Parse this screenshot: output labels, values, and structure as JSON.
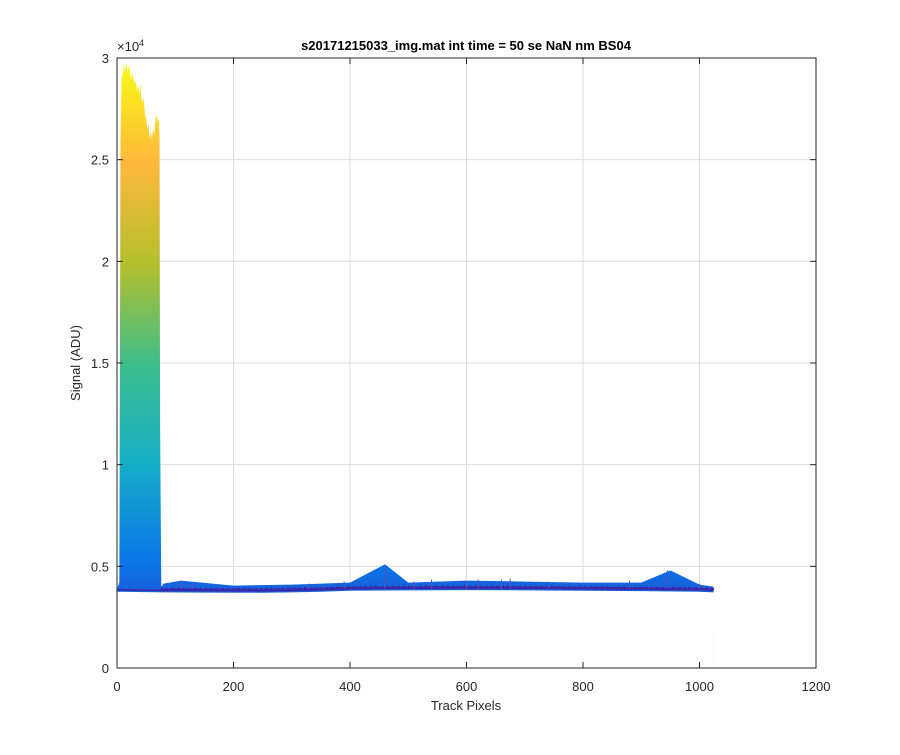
{
  "chart_data": {
    "type": "area",
    "title": "s20171215033_img.mat int time = 50 se  NaN nm BS04",
    "xlabel": "Track Pixels",
    "ylabel": "Signal (ADU)",
    "y_exponent_label": "×10",
    "y_exponent_power": "4",
    "xlim": [
      0,
      1200
    ],
    "ylim": [
      0,
      30000
    ],
    "x_ticks": [
      0,
      200,
      400,
      600,
      800,
      1000,
      1200
    ],
    "x_tick_labels": [
      "0",
      "200",
      "400",
      "600",
      "800",
      "1000",
      "1200"
    ],
    "y_ticks": [
      0,
      5000,
      10000,
      15000,
      20000,
      25000,
      30000
    ],
    "y_tick_labels": [
      "0",
      "0.5",
      "1",
      "1.5",
      "2",
      "2.5",
      "3"
    ],
    "grid": true,
    "colormap": [
      "#3e26a8",
      "#0b72e8",
      "#14aec8",
      "#3dbd8c",
      "#b4bf2c",
      "#feb83a",
      "#f9fb15"
    ],
    "series": [
      {
        "envelope_x": [
          1,
          4,
          6,
          8,
          10,
          12,
          14,
          16,
          18,
          20,
          22,
          24,
          26,
          28,
          30,
          32,
          34,
          36,
          38,
          40,
          42,
          44,
          46,
          48,
          50,
          52,
          54,
          56,
          58,
          60,
          62,
          64,
          66,
          68,
          70,
          72,
          73,
          74,
          76,
          80,
          110,
          200,
          300,
          400,
          460,
          500,
          600,
          700,
          800,
          900,
          950,
          1000,
          1024
        ],
        "envelope_y": [
          3950,
          4200,
          26000,
          29000,
          29200,
          29700,
          29400,
          29800,
          29200,
          29600,
          29500,
          28900,
          29300,
          29000,
          28700,
          28900,
          28400,
          28700,
          28200,
          28800,
          28000,
          27800,
          28000,
          27200,
          27000,
          26500,
          26800,
          26000,
          26400,
          26000,
          26500,
          26200,
          27000,
          27200,
          26800,
          27100,
          26000,
          12000,
          4000,
          4150,
          4300,
          4050,
          4100,
          4200,
          5100,
          4200,
          4300,
          4250,
          4200,
          4200,
          4800,
          4100,
          4000
        ],
        "baseline_x": [
          0,
          80,
          150,
          250,
          300,
          350,
          400,
          450,
          500,
          600,
          700,
          800,
          900,
          1000,
          1024
        ],
        "baseline_y": [
          3850,
          3820,
          3810,
          3800,
          3820,
          3850,
          3900,
          3910,
          3920,
          3930,
          3920,
          3900,
          3880,
          3850,
          3820
        ],
        "spikes": [
          [
            110,
            4300
          ],
          [
            125,
            4150
          ],
          [
            130,
            4200
          ],
          [
            330,
            4150
          ],
          [
            390,
            4250
          ],
          [
            460,
            5000
          ],
          [
            510,
            4250
          ],
          [
            540,
            4350
          ],
          [
            600,
            4250
          ],
          [
            620,
            4350
          ],
          [
            660,
            4350
          ],
          [
            675,
            4400
          ],
          [
            740,
            4250
          ],
          [
            880,
            4300
          ],
          [
            945,
            4800
          ],
          [
            1000,
            4150
          ]
        ]
      }
    ]
  }
}
